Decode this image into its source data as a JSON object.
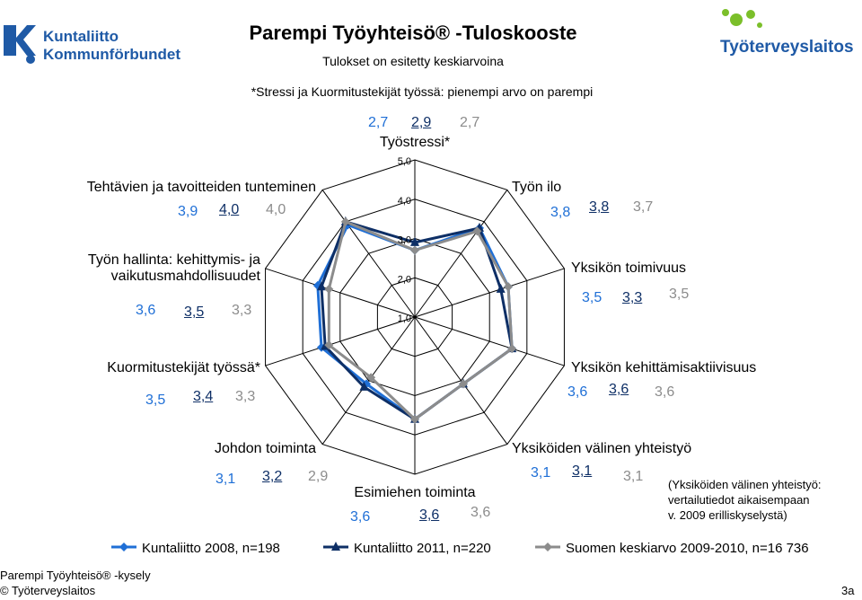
{
  "header": {
    "title": "Parempi Työyhteisö® -Tuloskooste",
    "subtitle": "Tulokset on esitetty keskiarvoina",
    "note": "*Stressi ja Kuormitustekijät työssä: pienempi arvo on parempi"
  },
  "logos": {
    "left": {
      "line1": "Kuntaliitto",
      "line2": "Kommunförbundet"
    },
    "right": {
      "text": "Työterveyslaitos"
    }
  },
  "chart_data": {
    "type": "radar",
    "rlim": [
      1.0,
      5.0
    ],
    "ticks": [
      "1,0",
      "2,0",
      "3,0",
      "4,0",
      "5,0"
    ],
    "categories": [
      "Työstressi*",
      "Työn ilo",
      "Yksikön toimivuus",
      "Yksikön kehittämisaktiivisuus",
      "Yksiköiden välinen yhteistyö",
      "Esimiehen toiminta",
      "Johdon toiminta",
      "Kuormitustekijät työssä*",
      "Työn hallinta: kehittymis- ja vaikutusmahdollisuudet",
      "Tehtävien ja tavoitteiden tunteminen"
    ],
    "series": [
      {
        "name": "Kuntaliitto 2008, n=198",
        "color": "#1f6fd6",
        "marker": "diamond",
        "values": [
          2.7,
          3.8,
          3.5,
          3.6,
          3.1,
          3.6,
          3.1,
          3.5,
          3.6,
          3.9
        ],
        "labels": [
          "2,7",
          "3,8",
          "3,5",
          "3,6",
          "3,1",
          "3,6",
          "3,1",
          "3,5",
          "3,6",
          "3,9"
        ]
      },
      {
        "name": "Kuntaliitto 2011, n=220",
        "color": "#0e2f66",
        "marker": "triangle",
        "values": [
          2.9,
          3.8,
          3.3,
          3.6,
          3.1,
          3.6,
          3.2,
          3.4,
          3.5,
          4.0
        ],
        "labels": [
          "2,9",
          "3,8",
          "3,3",
          "3,6",
          "3,1",
          "3,6",
          "3,2",
          "3,4",
          "3,5",
          "4,0"
        ]
      },
      {
        "name": "Suomen keskiarvo 2009-2010, n=16 736",
        "color": "#8c8c8c",
        "marker": "diamond",
        "values": [
          2.7,
          3.7,
          3.5,
          3.6,
          3.1,
          3.6,
          2.9,
          3.3,
          3.3,
          4.0
        ],
        "labels": [
          "2,7",
          "3,7",
          "3,5",
          "3,6",
          "3,1",
          "3,6",
          "2,9",
          "3,3",
          "3,3",
          "4,0"
        ]
      }
    ],
    "display": {
      "Työn hallinta: kehittymis- ja vaikutusmahdollisuudet": [
        "Työn hallinta: kehittymis- ja",
        "vaikutusmahdollisuudet"
      ]
    }
  },
  "side_note": {
    "line1": "(Yksiköiden välinen yhteistyö:",
    "line2": "vertailutiedot aikaisempaan",
    "line3": "v. 2009 erilliskyselystä)"
  },
  "footer": {
    "line1": "Parempi Työyhteisö® -kysely",
    "line2": "© Työterveyslaitos",
    "page": "3a"
  }
}
